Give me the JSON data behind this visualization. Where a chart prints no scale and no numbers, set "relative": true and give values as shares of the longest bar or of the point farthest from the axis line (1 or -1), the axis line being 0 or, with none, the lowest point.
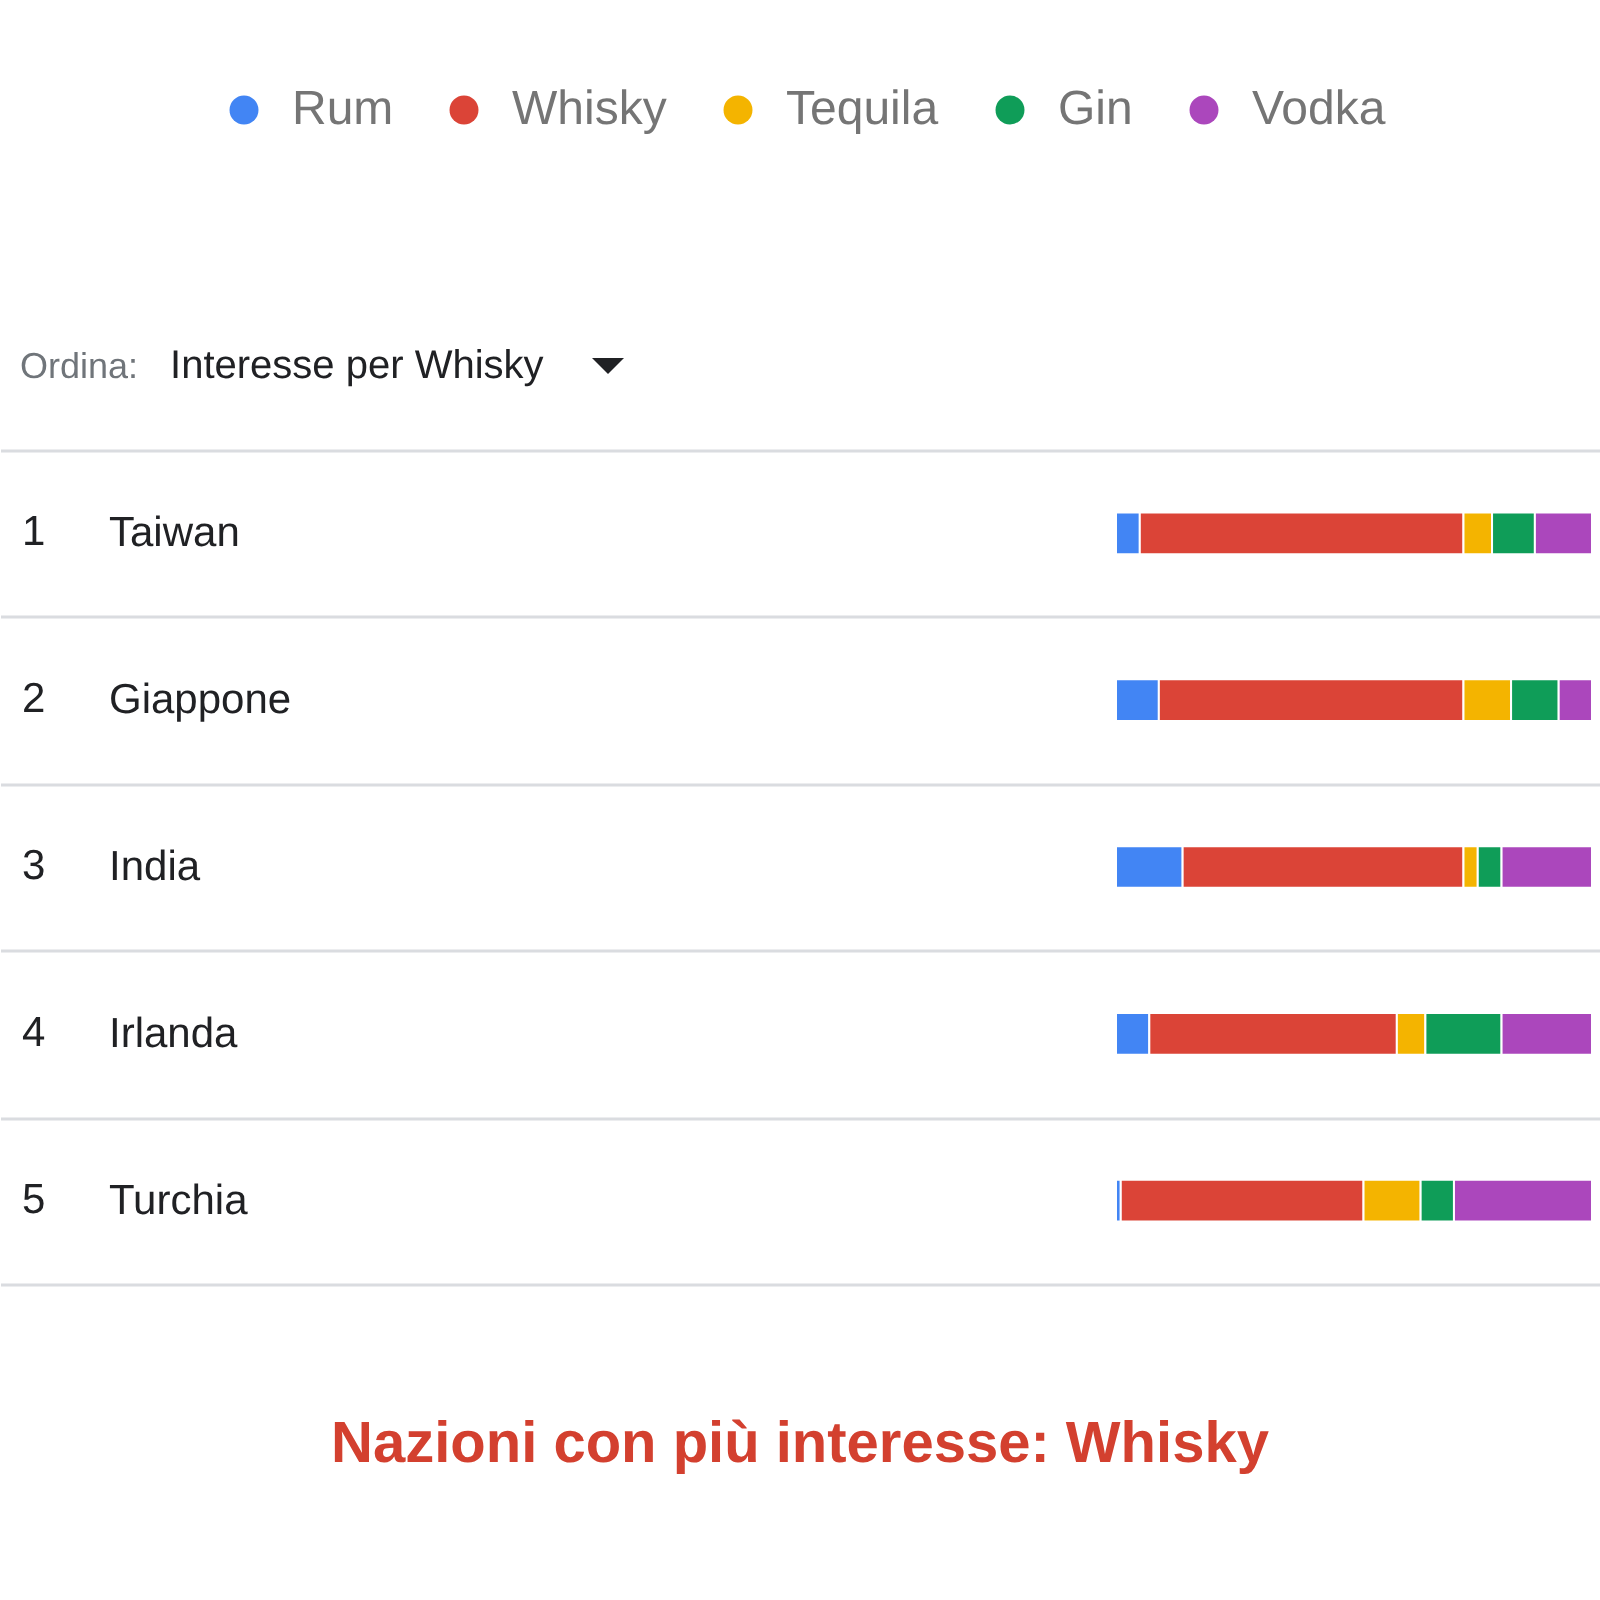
{
  "chart_data": {
    "type": "bar",
    "orientation": "horizontal",
    "stacked": true,
    "relative": true,
    "title": "Nazioni con più interesse: Whisky",
    "categories": [
      "Taiwan",
      "Giappone",
      "India",
      "Irlanda",
      "Turchia"
    ],
    "series": [
      {
        "name": "Rum",
        "color": "#4285f4",
        "values": [
          0.05,
          0.09,
          0.14,
          0.07,
          0.01
        ]
      },
      {
        "name": "Whisky",
        "color": "#db4437",
        "values": [
          0.68,
          0.64,
          0.59,
          0.52,
          0.51
        ]
      },
      {
        "name": "Tequila",
        "color": "#f4b400",
        "values": [
          0.06,
          0.1,
          0.03,
          0.06,
          0.12
        ]
      },
      {
        "name": "Gin",
        "color": "#0f9d58",
        "values": [
          0.09,
          0.1,
          0.05,
          0.16,
          0.07
        ]
      },
      {
        "name": "Vodka",
        "color": "#ab47bc",
        "values": [
          0.12,
          0.07,
          0.19,
          0.19,
          0.29
        ]
      }
    ],
    "legend": "top",
    "grid": "y",
    "annotations": [
      "Ordina:",
      "Interesse per Whisky",
      "1",
      "2",
      "3",
      "4",
      "5"
    ]
  }
}
